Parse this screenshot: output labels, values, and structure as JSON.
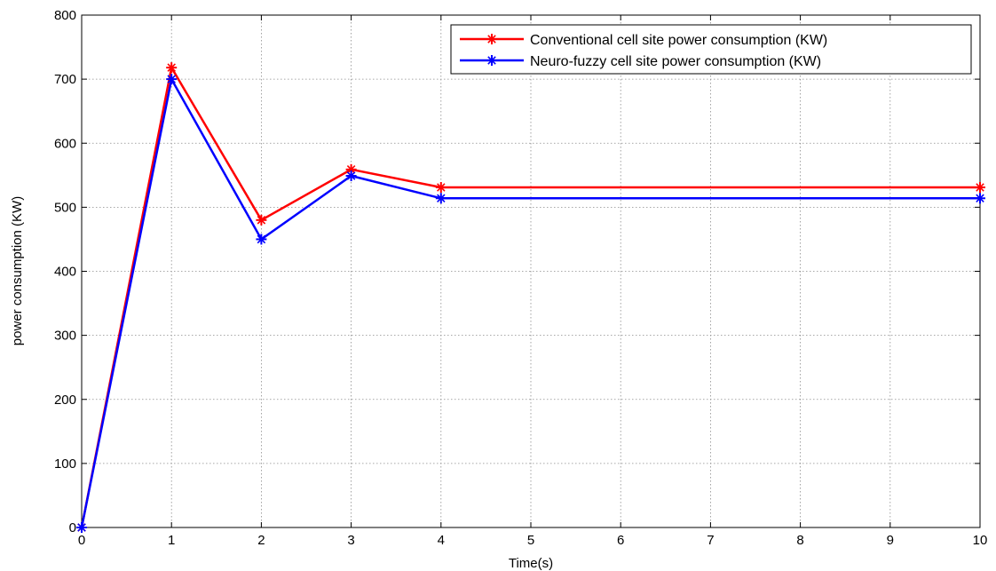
{
  "chart_data": {
    "type": "line",
    "title": "",
    "xlabel": "Time(s)",
    "ylabel": "power consumption (KW)",
    "xlim": [
      0,
      10
    ],
    "ylim": [
      0,
      800
    ],
    "xticks": [
      0,
      1,
      2,
      3,
      4,
      5,
      6,
      7,
      8,
      9,
      10
    ],
    "yticks": [
      0,
      100,
      200,
      300,
      400,
      500,
      600,
      700,
      800
    ],
    "grid": true,
    "legend_position": "top-right",
    "series": [
      {
        "name": "Conventional cell site power consumption (KW)",
        "color": "#ff0000",
        "x": [
          0,
          1,
          2,
          3,
          4,
          10
        ],
        "y": [
          0,
          718,
          480,
          559,
          531,
          531
        ]
      },
      {
        "name": "Neuro-fuzzy cell site power consumption (KW)",
        "color": "#0000ff",
        "x": [
          0,
          1,
          2,
          3,
          4,
          10
        ],
        "y": [
          0,
          700,
          450,
          549,
          514,
          514
        ]
      }
    ]
  }
}
